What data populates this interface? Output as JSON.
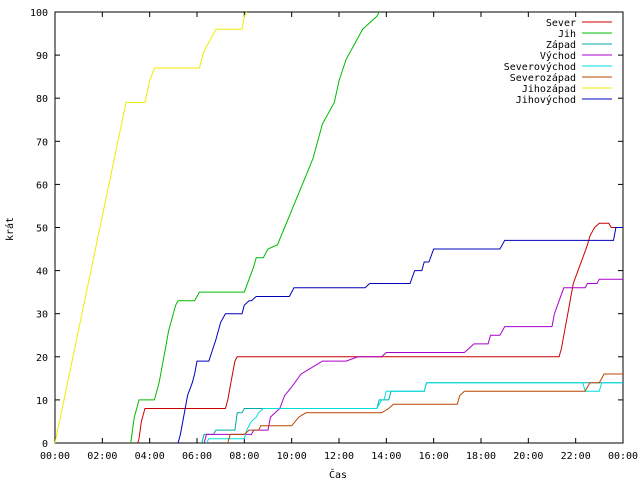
{
  "chart_data": {
    "type": "line",
    "xlabel": "Čas",
    "ylabel": "krát",
    "xlim": [
      0,
      24
    ],
    "ylim": [
      0,
      100
    ],
    "xticks": [
      {
        "v": 0,
        "label": "00:00"
      },
      {
        "v": 2,
        "label": "02:00"
      },
      {
        "v": 4,
        "label": "04:00"
      },
      {
        "v": 6,
        "label": "06:00"
      },
      {
        "v": 8,
        "label": "08:00"
      },
      {
        "v": 10,
        "label": "10:00"
      },
      {
        "v": 12,
        "label": "12:00"
      },
      {
        "v": 14,
        "label": "14:00"
      },
      {
        "v": 16,
        "label": "16:00"
      },
      {
        "v": 18,
        "label": "18:00"
      },
      {
        "v": 20,
        "label": "20:00"
      },
      {
        "v": 22,
        "label": "22:00"
      },
      {
        "v": 24,
        "label": "00:00"
      }
    ],
    "yticks": [
      0,
      10,
      20,
      30,
      40,
      50,
      60,
      70,
      80,
      90,
      100
    ],
    "grid": false,
    "legend_position": "top-right",
    "series": [
      {
        "name": "Sever",
        "color": "#cc0000",
        "points": [
          [
            3.5,
            0
          ],
          [
            3.55,
            1
          ],
          [
            3.6,
            3
          ],
          [
            3.65,
            5
          ],
          [
            3.75,
            7
          ],
          [
            3.8,
            8
          ],
          [
            7.2,
            8
          ],
          [
            7.3,
            10
          ],
          [
            7.4,
            13
          ],
          [
            7.5,
            16
          ],
          [
            7.6,
            19
          ],
          [
            7.7,
            20
          ],
          [
            21.3,
            20
          ],
          [
            21.4,
            22
          ],
          [
            21.5,
            25
          ],
          [
            21.6,
            28
          ],
          [
            21.7,
            31
          ],
          [
            21.8,
            34
          ],
          [
            21.9,
            37
          ],
          [
            22.1,
            40
          ],
          [
            22.3,
            43
          ],
          [
            22.5,
            46
          ],
          [
            22.6,
            48
          ],
          [
            22.7,
            49
          ],
          [
            22.8,
            50
          ],
          [
            23,
            51
          ],
          [
            23.4,
            51
          ],
          [
            23.5,
            50
          ],
          [
            24,
            50
          ]
        ]
      },
      {
        "name": "Jih",
        "color": "#00bb00",
        "points": [
          [
            3.2,
            0
          ],
          [
            3.35,
            6
          ],
          [
            3.45,
            8
          ],
          [
            3.55,
            10
          ],
          [
            4.2,
            10
          ],
          [
            4.4,
            14
          ],
          [
            4.6,
            20
          ],
          [
            4.8,
            26
          ],
          [
            5.0,
            30
          ],
          [
            5.1,
            32
          ],
          [
            5.2,
            33
          ],
          [
            5.9,
            33
          ],
          [
            6.0,
            34
          ],
          [
            6.1,
            35
          ],
          [
            8.0,
            35
          ],
          [
            8.2,
            38
          ],
          [
            8.4,
            41
          ],
          [
            8.5,
            43
          ],
          [
            8.8,
            43
          ],
          [
            9.0,
            45
          ],
          [
            9.4,
            46
          ],
          [
            9.7,
            50
          ],
          [
            10.0,
            54
          ],
          [
            10.3,
            58
          ],
          [
            10.6,
            62
          ],
          [
            10.9,
            66
          ],
          [
            11.1,
            70
          ],
          [
            11.3,
            74
          ],
          [
            11.5,
            76
          ],
          [
            11.8,
            79
          ],
          [
            12.0,
            84
          ],
          [
            12.3,
            89
          ],
          [
            12.6,
            92
          ],
          [
            12.8,
            94
          ],
          [
            13.0,
            96
          ],
          [
            13.2,
            97
          ],
          [
            13.4,
            98
          ],
          [
            13.6,
            99
          ],
          [
            13.7,
            100
          ]
        ]
      },
      {
        "name": "Západ",
        "color": "#00aaaa",
        "points": [
          [
            6.2,
            0
          ],
          [
            6.3,
            2
          ],
          [
            6.7,
            2
          ],
          [
            6.8,
            3
          ],
          [
            7.6,
            3
          ],
          [
            7.7,
            7
          ],
          [
            7.9,
            7
          ],
          [
            8.0,
            8
          ],
          [
            13.6,
            8
          ],
          [
            13.7,
            10
          ],
          [
            14.1,
            10
          ],
          [
            14.2,
            12
          ],
          [
            15.6,
            12
          ],
          [
            15.7,
            14
          ],
          [
            24,
            14
          ]
        ]
      },
      {
        "name": "Východ",
        "color": "#aa00cc",
        "points": [
          [
            6.3,
            0
          ],
          [
            6.4,
            2
          ],
          [
            8.3,
            2
          ],
          [
            8.4,
            3
          ],
          [
            9.0,
            3
          ],
          [
            9.1,
            6
          ],
          [
            9.3,
            7
          ],
          [
            9.5,
            8
          ],
          [
            9.7,
            11
          ],
          [
            10.0,
            13
          ],
          [
            10.4,
            16
          ],
          [
            10.7,
            17
          ],
          [
            11.0,
            18
          ],
          [
            11.3,
            19
          ],
          [
            12.0,
            19
          ],
          [
            12.3,
            19
          ],
          [
            12.8,
            20
          ],
          [
            13.8,
            20
          ],
          [
            14.0,
            21
          ],
          [
            17.3,
            21
          ],
          [
            17.5,
            22
          ],
          [
            17.7,
            23
          ],
          [
            18.3,
            23
          ],
          [
            18.4,
            25
          ],
          [
            18.8,
            25
          ],
          [
            19.0,
            27
          ],
          [
            21.0,
            27
          ],
          [
            21.1,
            30
          ],
          [
            21.3,
            33
          ],
          [
            21.5,
            36
          ],
          [
            22.4,
            36
          ],
          [
            22.5,
            37
          ],
          [
            22.9,
            37
          ],
          [
            23.0,
            38
          ],
          [
            24,
            38
          ]
        ]
      },
      {
        "name": "Severovýchod",
        "color": "#00dddd",
        "points": [
          [
            6.4,
            0
          ],
          [
            6.5,
            1
          ],
          [
            8.0,
            1
          ],
          [
            8.1,
            3
          ],
          [
            8.3,
            5
          ],
          [
            8.5,
            6
          ],
          [
            8.6,
            7
          ],
          [
            8.8,
            8
          ],
          [
            13.6,
            8
          ],
          [
            13.8,
            10
          ],
          [
            13.9,
            10
          ],
          [
            14.0,
            12
          ],
          [
            15.6,
            12
          ],
          [
            15.7,
            14
          ],
          [
            22.3,
            14
          ],
          [
            22.4,
            12
          ],
          [
            23.0,
            12
          ],
          [
            23.1,
            14
          ],
          [
            24,
            14
          ]
        ]
      },
      {
        "name": "Severozápad",
        "color": "#bb4400",
        "points": [
          [
            7.3,
            0
          ],
          [
            7.4,
            2
          ],
          [
            8.0,
            2
          ],
          [
            8.2,
            3
          ],
          [
            8.6,
            3
          ],
          [
            8.7,
            4
          ],
          [
            10.0,
            4
          ],
          [
            10.3,
            6
          ],
          [
            10.6,
            7
          ],
          [
            13.8,
            7
          ],
          [
            14.1,
            8
          ],
          [
            14.3,
            9
          ],
          [
            17.0,
            9
          ],
          [
            17.1,
            11
          ],
          [
            17.3,
            12
          ],
          [
            22.4,
            12
          ],
          [
            22.6,
            14
          ],
          [
            23.0,
            14
          ],
          [
            23.1,
            15
          ],
          [
            23.2,
            16
          ],
          [
            24,
            16
          ]
        ]
      },
      {
        "name": "Jihozápad",
        "color": "#eeee00",
        "points": [
          [
            0,
            0
          ],
          [
            3.0,
            79
          ],
          [
            3.8,
            79
          ],
          [
            4.0,
            84
          ],
          [
            4.2,
            87
          ],
          [
            6.1,
            87
          ],
          [
            6.2,
            89
          ],
          [
            6.3,
            91
          ],
          [
            6.5,
            93
          ],
          [
            6.6,
            94
          ],
          [
            6.7,
            95
          ],
          [
            6.8,
            96
          ],
          [
            7.9,
            96
          ],
          [
            8.0,
            99
          ],
          [
            8.1,
            100
          ]
        ]
      },
      {
        "name": "Jihovýchod",
        "color": "#0000bb",
        "points": [
          [
            5.2,
            0
          ],
          [
            5.3,
            2
          ],
          [
            5.4,
            5
          ],
          [
            5.5,
            8
          ],
          [
            5.6,
            11
          ],
          [
            5.8,
            14
          ],
          [
            5.9,
            16
          ],
          [
            6.0,
            19
          ],
          [
            6.5,
            19
          ],
          [
            6.8,
            24
          ],
          [
            7.0,
            28
          ],
          [
            7.2,
            30
          ],
          [
            7.9,
            30
          ],
          [
            8.0,
            32
          ],
          [
            8.2,
            33
          ],
          [
            8.3,
            33
          ],
          [
            8.5,
            34
          ],
          [
            9.9,
            34
          ],
          [
            10.1,
            36
          ],
          [
            10.4,
            36
          ],
          [
            11.5,
            36
          ],
          [
            12.0,
            36
          ],
          [
            13.1,
            36
          ],
          [
            13.3,
            37
          ],
          [
            15.0,
            37
          ],
          [
            15.2,
            40
          ],
          [
            15.5,
            40
          ],
          [
            15.6,
            42
          ],
          [
            15.8,
            42
          ],
          [
            16.0,
            45
          ],
          [
            18.8,
            45
          ],
          [
            19.0,
            47
          ],
          [
            23.6,
            47
          ],
          [
            23.7,
            50
          ],
          [
            24,
            50
          ]
        ]
      }
    ]
  }
}
